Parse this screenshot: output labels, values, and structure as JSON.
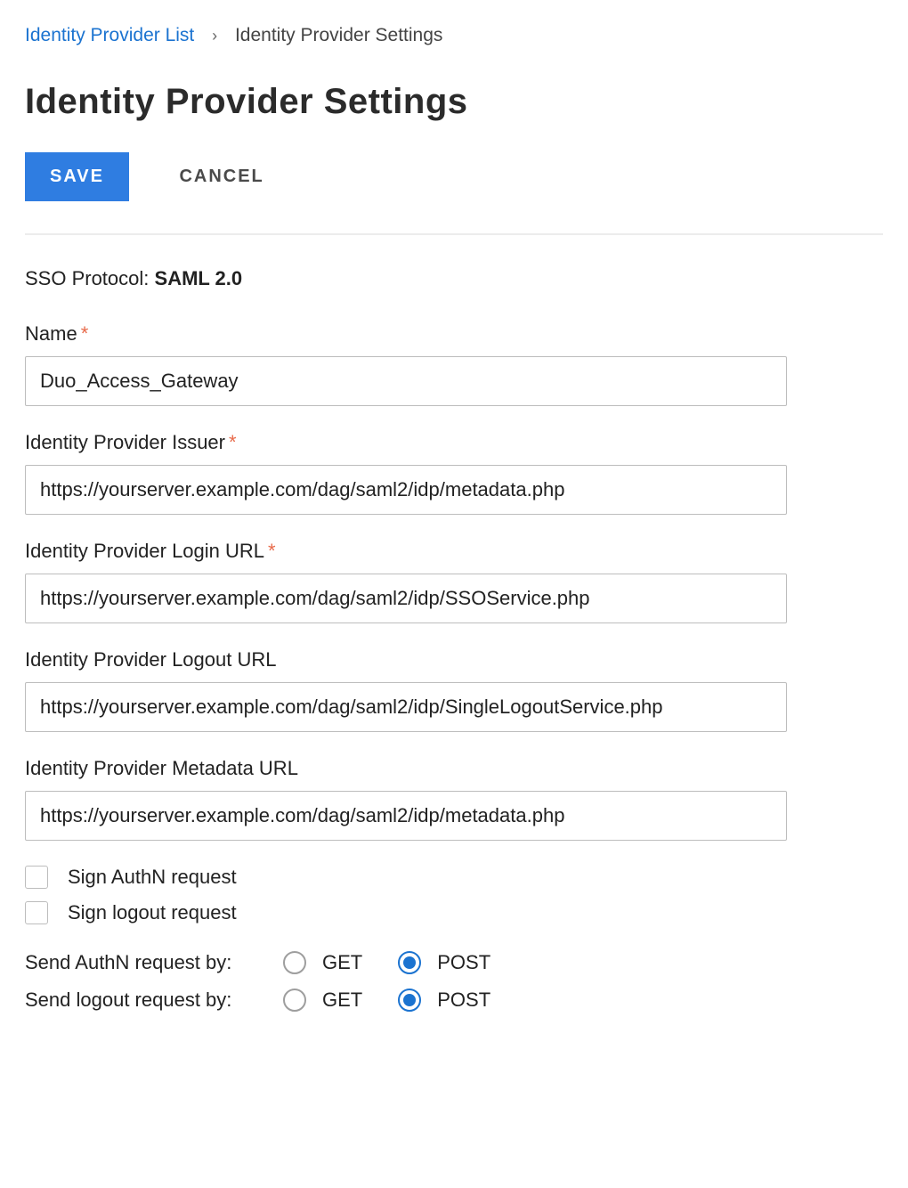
{
  "breadcrumb": {
    "parent": "Identity Provider List",
    "current": "Identity Provider Settings"
  },
  "page_title": "Identity Provider Settings",
  "buttons": {
    "save": "SAVE",
    "cancel": "CANCEL"
  },
  "sso_protocol": {
    "label": "SSO Protocol:",
    "value": "SAML 2.0"
  },
  "fields": {
    "name": {
      "label": "Name",
      "required": true,
      "value": "Duo_Access_Gateway"
    },
    "issuer": {
      "label": "Identity Provider Issuer",
      "required": true,
      "value": "https://yourserver.example.com/dag/saml2/idp/metadata.php"
    },
    "login_url": {
      "label": "Identity Provider Login URL",
      "required": true,
      "value": "https://yourserver.example.com/dag/saml2/idp/SSOService.php"
    },
    "logout_url": {
      "label": "Identity Provider Logout URL",
      "required": false,
      "value": "https://yourserver.example.com/dag/saml2/idp/SingleLogoutService.php"
    },
    "metadata_url": {
      "label": "Identity Provider Metadata URL",
      "required": false,
      "value": "https://yourserver.example.com/dag/saml2/idp/metadata.php"
    }
  },
  "checkboxes": {
    "sign_authn": {
      "label": "Sign AuthN request",
      "checked": false
    },
    "sign_logout": {
      "label": "Sign logout request",
      "checked": false
    }
  },
  "radios": {
    "authn": {
      "label": "Send AuthN request by:",
      "options": {
        "get": "GET",
        "post": "POST"
      },
      "selected": "post"
    },
    "logout": {
      "label": "Send logout request by:",
      "options": {
        "get": "GET",
        "post": "POST"
      },
      "selected": "post"
    }
  },
  "colors": {
    "primary": "#2f7de1",
    "link": "#1b73d0",
    "required_mark": "#e86a4a",
    "border": "#bdbdbd",
    "divider": "#ececec"
  }
}
